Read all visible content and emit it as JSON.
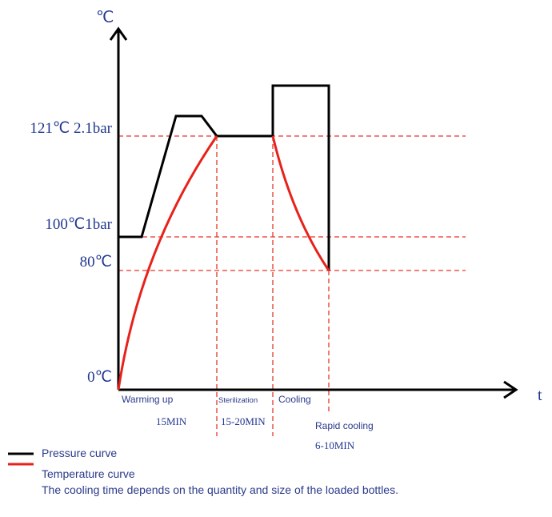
{
  "axis": {
    "y_label": "℃",
    "x_label": "t"
  },
  "levels": [
    "121℃ 2.1bar",
    "100℃1bar",
    "80℃",
    "0℃"
  ],
  "phases": [
    {
      "name": "Warming up",
      "time": "15MIN"
    },
    {
      "name": "Sterilization",
      "time": "15-20MIN"
    },
    {
      "name": "Cooling",
      "time": null
    },
    {
      "name": "Rapid cooling",
      "time": "6-10MIN"
    }
  ],
  "legend": {
    "pressure": "Pressure curve",
    "temperature": "Temperature curve",
    "note": "The cooling time depends on the quantity and size of the loaded bottles."
  }
}
